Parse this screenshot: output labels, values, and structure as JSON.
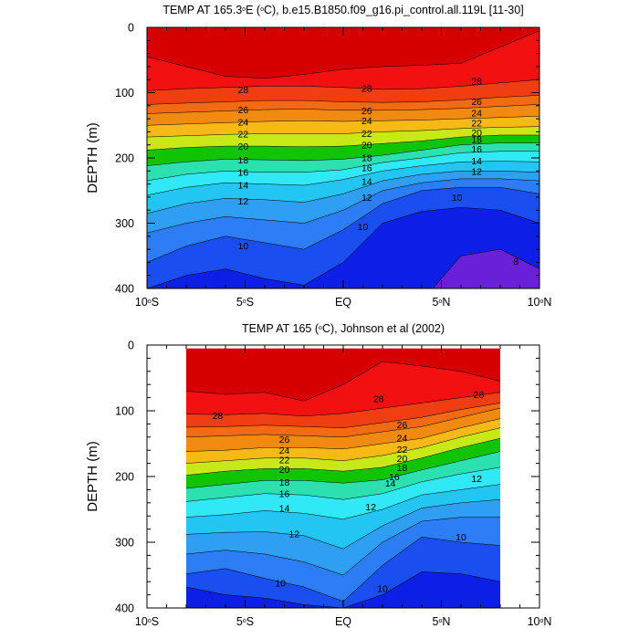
{
  "chart_data": [
    {
      "type": "filled-contour",
      "title": "TEMP AT 165.3°E (°C), b.e15.B1850.f09_g16.pi_control.all.119L [11-30]",
      "title_parts": {
        "prefix": "TEMP AT 165.3",
        "deg": "o",
        "mid": "E (",
        "deg2": "o",
        "suffix": "C), b.e15.B1850.f09_g16.pi_control.all.119L [11-30]"
      },
      "ylabel": "DEPTH (m)",
      "xlim": [
        -10,
        10
      ],
      "ylim": [
        0,
        400
      ],
      "y_reversed": true,
      "yticks": [
        0,
        100,
        200,
        300,
        400
      ],
      "xticks": [
        {
          "value": -10,
          "main": "10",
          "deg": "o",
          "dir": "S"
        },
        {
          "value": -5,
          "main": "5",
          "deg": "o",
          "dir": "S"
        },
        {
          "value": 0,
          "main": "EQ",
          "deg": "",
          "dir": ""
        },
        {
          "value": 5,
          "main": "5",
          "deg": "o",
          "dir": "N"
        },
        {
          "value": 10,
          "main": "10",
          "deg": "o",
          "dir": "N"
        }
      ],
      "data_extent": [
        -10,
        10
      ],
      "isotherm_depths": {
        "lat": [
          -10,
          -8,
          -6,
          -4,
          -2,
          0,
          2,
          4,
          6,
          8,
          10
        ],
        "t8": [
          999,
          999,
          999,
          999,
          999,
          999,
          999,
          999,
          350,
          340,
          370
        ],
        "t9": [
          400,
          380,
          370,
          385,
          395,
          360,
          300,
          282,
          276,
          280,
          300
        ],
        "t10": [
          360,
          335,
          320,
          330,
          340,
          310,
          270,
          250,
          245,
          245,
          255
        ],
        "t11": [
          315,
          300,
          290,
          295,
          300,
          280,
          250,
          238,
          232,
          232,
          235
        ],
        "t12": [
          285,
          270,
          262,
          264,
          268,
          255,
          235,
          225,
          220,
          220,
          222
        ],
        "t14": [
          257,
          245,
          238,
          240,
          242,
          233,
          220,
          212,
          206,
          205,
          206
        ],
        "t16": [
          235,
          225,
          220,
          222,
          222,
          218,
          207,
          200,
          192,
          190,
          190
        ],
        "t18": [
          212,
          206,
          202,
          203,
          204,
          202,
          196,
          188,
          180,
          177,
          177
        ],
        "t20": [
          188,
          184,
          182,
          182,
          183,
          182,
          178,
          174,
          168,
          165,
          165
        ],
        "t22": [
          168,
          166,
          164,
          163,
          163,
          163,
          160,
          158,
          155,
          153,
          152
        ],
        "t24": [
          150,
          148,
          146,
          144,
          143,
          144,
          143,
          142,
          140,
          138,
          136
        ],
        "t26": [
          132,
          130,
          128,
          126,
          125,
          127,
          127,
          126,
          124,
          121,
          118
        ],
        "t27": [
          118,
          116,
          114,
          112,
          112,
          114,
          115,
          114,
          111,
          107,
          104
        ],
        "t28": [
          97,
          94,
          92,
          90,
          90,
          92,
          95,
          94,
          90,
          85,
          80
        ],
        "t29": [
          45,
          60,
          75,
          78,
          72,
          64,
          60,
          58,
          55,
          30,
          5
        ]
      },
      "contour_labels": [
        {
          "text": "28",
          "lat": -5.1,
          "depth": 95
        },
        {
          "text": "26",
          "lat": -5.1,
          "depth": 126
        },
        {
          "text": "24",
          "lat": -5.1,
          "depth": 145
        },
        {
          "text": "22",
          "lat": -5.1,
          "depth": 163
        },
        {
          "text": "20",
          "lat": -5.1,
          "depth": 182
        },
        {
          "text": "18",
          "lat": -5.1,
          "depth": 203
        },
        {
          "text": "16",
          "lat": -5.1,
          "depth": 222
        },
        {
          "text": "14",
          "lat": -5.1,
          "depth": 241
        },
        {
          "text": "12",
          "lat": -5.1,
          "depth": 266
        },
        {
          "text": "10",
          "lat": -5.1,
          "depth": 334
        },
        {
          "text": "28",
          "lat": 1.2,
          "depth": 93
        },
        {
          "text": "26",
          "lat": 1.2,
          "depth": 127
        },
        {
          "text": "24",
          "lat": 1.2,
          "depth": 143
        },
        {
          "text": "22",
          "lat": 1.2,
          "depth": 162
        },
        {
          "text": "20",
          "lat": 1.2,
          "depth": 180
        },
        {
          "text": "18",
          "lat": 1.2,
          "depth": 199
        },
        {
          "text": "16",
          "lat": 1.2,
          "depth": 215
        },
        {
          "text": "14",
          "lat": 1.2,
          "depth": 236
        },
        {
          "text": "12",
          "lat": 1.2,
          "depth": 260
        },
        {
          "text": "10",
          "lat": 1.0,
          "depth": 305
        },
        {
          "text": "28",
          "lat": 6.8,
          "depth": 82
        },
        {
          "text": "26",
          "lat": 6.8,
          "depth": 113
        },
        {
          "text": "24",
          "lat": 6.8,
          "depth": 131
        },
        {
          "text": "22",
          "lat": 6.8,
          "depth": 146
        },
        {
          "text": "20",
          "lat": 6.8,
          "depth": 161
        },
        {
          "text": "18",
          "lat": 6.8,
          "depth": 171
        },
        {
          "text": "16",
          "lat": 6.8,
          "depth": 186
        },
        {
          "text": "14",
          "lat": 6.8,
          "depth": 204
        },
        {
          "text": "12",
          "lat": 6.8,
          "depth": 220
        },
        {
          "text": "10",
          "lat": 5.8,
          "depth": 260
        },
        {
          "text": "8",
          "lat": 8.8,
          "depth": 358
        }
      ]
    },
    {
      "type": "filled-contour",
      "title": "TEMP AT 165 (°C), Johnson et al (2002)",
      "title_parts": {
        "prefix": "TEMP AT 165 (",
        "deg": "o",
        "mid": "",
        "deg2": "",
        "suffix": "C), Johnson et al (2002)"
      },
      "ylabel": "DEPTH (m)",
      "xlim": [
        -10,
        10
      ],
      "ylim": [
        0,
        400
      ],
      "y_reversed": true,
      "yticks": [
        0,
        100,
        200,
        300,
        400
      ],
      "xticks": [
        {
          "value": -10,
          "main": "10",
          "deg": "o",
          "dir": "S"
        },
        {
          "value": -5,
          "main": "5",
          "deg": "o",
          "dir": "S"
        },
        {
          "value": 0,
          "main": "EQ",
          "deg": "",
          "dir": ""
        },
        {
          "value": 5,
          "main": "5",
          "deg": "o",
          "dir": "N"
        },
        {
          "value": 10,
          "main": "10",
          "deg": "o",
          "dir": "N"
        }
      ],
      "data_extent": [
        -8,
        8
      ],
      "data_top": 5,
      "isotherm_depths": {
        "lat": [
          -8,
          -6,
          -4,
          -2,
          0,
          2,
          4,
          6,
          8
        ],
        "t9": [
          368,
          380,
          385,
          395,
          400,
          380,
          345,
          348,
          360
        ],
        "t10": [
          348,
          340,
          355,
          368,
          390,
          335,
          292,
          300,
          305
        ],
        "t11": [
          318,
          312,
          318,
          330,
          350,
          300,
          268,
          262,
          262
        ],
        "t12": [
          288,
          285,
          284,
          290,
          310,
          275,
          248,
          240,
          235
        ],
        "t14": [
          262,
          258,
          252,
          256,
          265,
          250,
          228,
          220,
          212
        ],
        "t16": [
          238,
          232,
          226,
          228,
          235,
          226,
          208,
          196,
          186
        ],
        "t18": [
          218,
          212,
          206,
          206,
          210,
          205,
          190,
          176,
          162
        ],
        "t20": [
          198,
          192,
          188,
          188,
          192,
          186,
          172,
          156,
          142
        ],
        "t22": [
          180,
          176,
          172,
          172,
          176,
          168,
          156,
          140,
          126
        ],
        "t24": [
          162,
          160,
          156,
          156,
          158,
          150,
          142,
          126,
          112
        ],
        "t26": [
          140,
          138,
          136,
          138,
          140,
          132,
          124,
          110,
          96
        ],
        "t27": [
          125,
          124,
          122,
          124,
          126,
          118,
          110,
          98,
          88
        ],
        "t28": [
          105,
          106,
          104,
          108,
          104,
          96,
          88,
          80,
          72
        ],
        "t29": [
          70,
          75,
          72,
          85,
          60,
          25,
          32,
          40,
          55
        ]
      },
      "contour_labels": [
        {
          "text": "28",
          "lat": -6.4,
          "depth": 107
        },
        {
          "text": "26",
          "lat": -3.0,
          "depth": 143
        },
        {
          "text": "24",
          "lat": -3.0,
          "depth": 160
        },
        {
          "text": "22",
          "lat": -3.0,
          "depth": 174
        },
        {
          "text": "20",
          "lat": -3.0,
          "depth": 189
        },
        {
          "text": "18",
          "lat": -3.0,
          "depth": 208
        },
        {
          "text": "16",
          "lat": -3.0,
          "depth": 226
        },
        {
          "text": "14",
          "lat": -3.0,
          "depth": 248
        },
        {
          "text": "12",
          "lat": -2.5,
          "depth": 287
        },
        {
          "text": "10",
          "lat": -3.2,
          "depth": 362
        },
        {
          "text": "28",
          "lat": 1.8,
          "depth": 81
        },
        {
          "text": "26",
          "lat": 3.0,
          "depth": 121
        },
        {
          "text": "24",
          "lat": 3.0,
          "depth": 141
        },
        {
          "text": "22",
          "lat": 3.0,
          "depth": 158
        },
        {
          "text": "20",
          "lat": 3.0,
          "depth": 172
        },
        {
          "text": "18",
          "lat": 3.0,
          "depth": 186
        },
        {
          "text": "16",
          "lat": 2.6,
          "depth": 200
        },
        {
          "text": "14",
          "lat": 2.4,
          "depth": 210
        },
        {
          "text": "12",
          "lat": 1.4,
          "depth": 246
        },
        {
          "text": "10",
          "lat": 2.0,
          "depth": 370
        },
        {
          "text": "28",
          "lat": 6.9,
          "depth": 75
        },
        {
          "text": "12",
          "lat": 6.8,
          "depth": 203
        },
        {
          "text": "10",
          "lat": 6.0,
          "depth": 292
        }
      ]
    }
  ],
  "colors": {
    "t8": "#6a1fd8",
    "t9": "#0d1fe6",
    "t10": "#1a4ef0",
    "t11": "#2d7ef6",
    "t12": "#2e9ff2",
    "t14": "#23c6f3",
    "t16": "#31e8f6",
    "t18": "#2de0b0",
    "t20": "#10c400",
    "t22": "#c8e818",
    "t24": "#f7b915",
    "t26": "#f28a12",
    "t27": "#f26a12",
    "t28": "#f03e12",
    "t29": "#f21010",
    "t30": "#d70000"
  }
}
